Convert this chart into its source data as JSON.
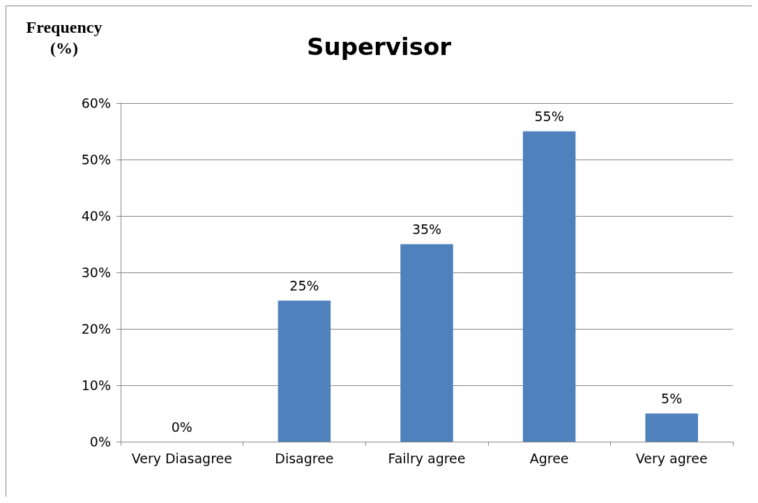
{
  "chart_data": {
    "type": "bar",
    "title": "Supervisor",
    "ylabel": "Frequency\n(%)",
    "categories": [
      "Very Diasagree",
      "Disagree",
      "Failry agree",
      "Agree",
      "Very agree"
    ],
    "values": [
      0,
      25,
      35,
      55,
      5
    ],
    "value_labels": [
      "0%",
      "25%",
      "35%",
      "55%",
      "5%"
    ],
    "color": "#4f81bd",
    "ylim": [
      0,
      60
    ],
    "yticks": [
      {
        "value": 0,
        "label": "0%"
      },
      {
        "value": 10,
        "label": "10%"
      },
      {
        "value": 20,
        "label": "20%"
      },
      {
        "value": 30,
        "label": "30%"
      },
      {
        "value": 40,
        "label": "40%"
      },
      {
        "value": 50,
        "label": "50%"
      },
      {
        "value": 60,
        "label": "60%"
      }
    ],
    "grid": "y"
  }
}
